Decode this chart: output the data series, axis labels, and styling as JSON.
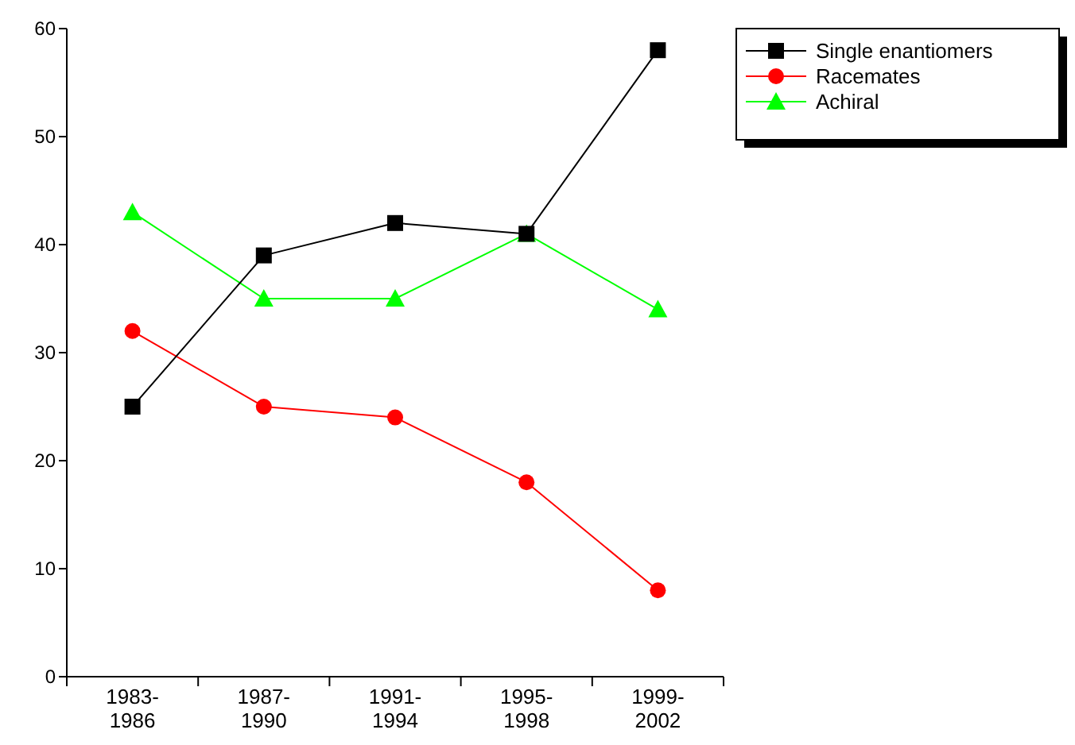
{
  "chart_data": {
    "type": "line",
    "categories": [
      "1983-1986",
      "1987-1990",
      "1991-1994",
      "1995-1998",
      "1999-2002"
    ],
    "ylim": [
      0,
      60
    ],
    "yticks": [
      0,
      10,
      20,
      30,
      40,
      50,
      60
    ],
    "grid": false,
    "legend": "top right",
    "series": [
      {
        "name": "Single enantiomers",
        "color": "#000000",
        "marker": "square",
        "values": [
          25,
          39,
          42,
          41,
          58
        ]
      },
      {
        "name": "Racemates",
        "color": "#ff0000",
        "marker": "circle",
        "values": [
          32,
          25,
          24,
          18,
          8
        ]
      },
      {
        "name": "Achiral",
        "color": "#00ff00",
        "marker": "triangle",
        "values": [
          43,
          35,
          35,
          41,
          34
        ]
      }
    ]
  }
}
